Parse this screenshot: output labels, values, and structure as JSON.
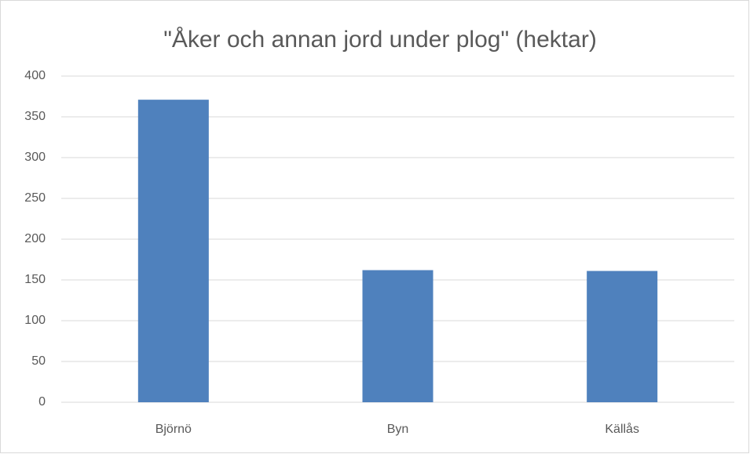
{
  "chart_data": {
    "type": "bar",
    "title": "\"Åker och annan jord under plog\" (hektar)",
    "categories": [
      "Björnö",
      "Byn",
      "Källås"
    ],
    "values": [
      371,
      162,
      161
    ],
    "color": "#4f81bd",
    "ylim": [
      0,
      400
    ],
    "yticks": [
      0,
      50,
      100,
      150,
      200,
      250,
      300,
      350,
      400
    ],
    "grid": true
  }
}
